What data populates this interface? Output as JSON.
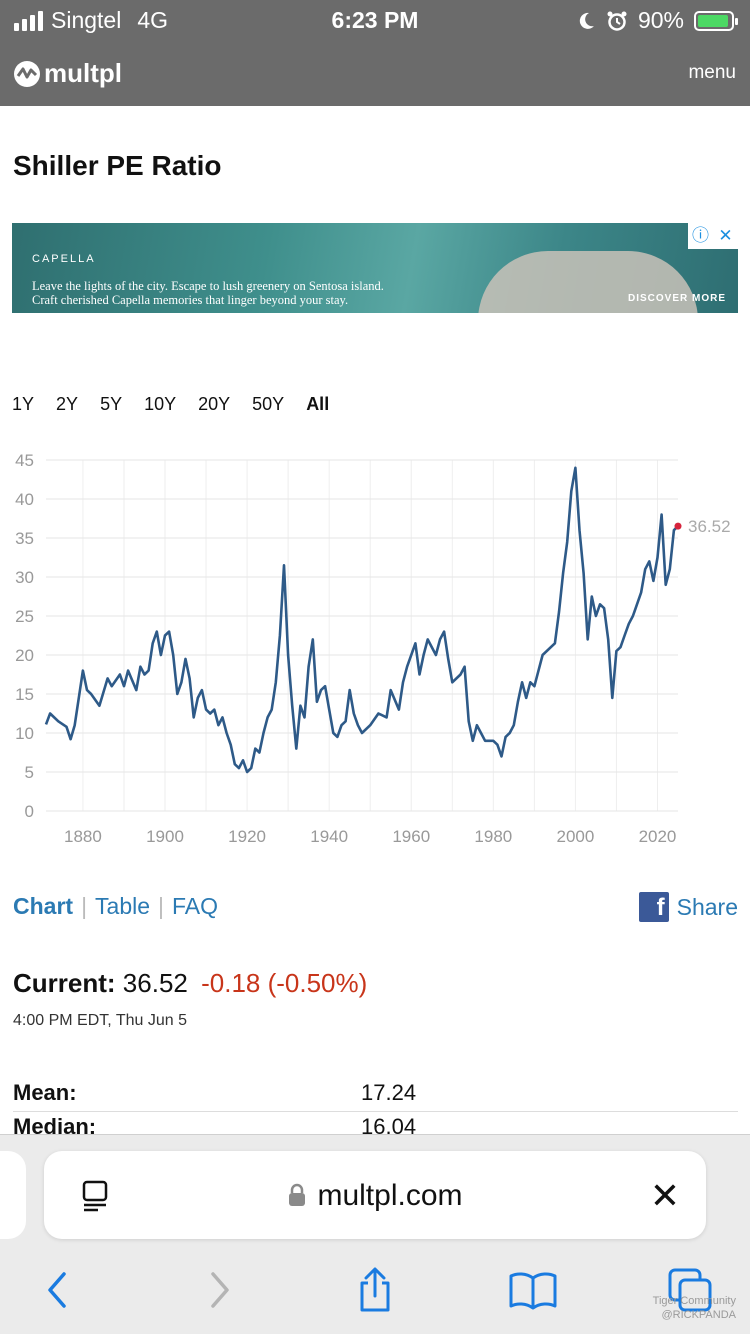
{
  "status_bar": {
    "carrier": "Singtel",
    "network": "4G",
    "time": "6:23 PM",
    "battery_percent": "90%"
  },
  "site": {
    "logo_text": "multpl",
    "menu_label": "menu"
  },
  "page_title": "Shiller PE Ratio",
  "ad": {
    "brand": "CAPELLA",
    "line1": "Leave the lights of the city. Escape to lush greenery on Sentosa island.",
    "line2": "Craft cherished Capella memories that linger beyond your stay.",
    "cta": "DISCOVER MORE",
    "info_icon": "info-icon",
    "close_icon": "close-icon"
  },
  "ranges": [
    "1Y",
    "2Y",
    "5Y",
    "10Y",
    "20Y",
    "50Y",
    "All"
  ],
  "active_range": "All",
  "chart_data": {
    "type": "line",
    "title": "",
    "xlabel": "",
    "ylabel": "",
    "xlim": [
      1871,
      2025
    ],
    "ylim": [
      0,
      45
    ],
    "x_ticks": [
      1880,
      1900,
      1920,
      1940,
      1960,
      1980,
      2000,
      2020
    ],
    "y_ticks": [
      0,
      5,
      10,
      15,
      20,
      25,
      30,
      35,
      40,
      45
    ],
    "grid": true,
    "line_color": "#2e5a88",
    "marker_color": "#d6233c",
    "last_value_label": "36.52",
    "series": [
      {
        "x": [
          1871,
          1872,
          1874,
          1876,
          1877,
          1878,
          1880,
          1881,
          1882,
          1884,
          1886,
          1887,
          1889,
          1890,
          1891,
          1893,
          1894,
          1895,
          1896,
          1897,
          1898,
          1899,
          1900,
          1901,
          1902,
          1903,
          1904,
          1905,
          1906,
          1907,
          1908,
          1909,
          1910,
          1911,
          1912,
          1913,
          1914,
          1915,
          1916,
          1917,
          1918,
          1919,
          1920,
          1921,
          1922,
          1923,
          1924,
          1925,
          1926,
          1927,
          1928,
          1929,
          1930,
          1931,
          1932,
          1933,
          1934,
          1935,
          1936,
          1937,
          1938,
          1939,
          1940,
          1941,
          1942,
          1943,
          1944,
          1945,
          1946,
          1947,
          1948,
          1950,
          1952,
          1954,
          1955,
          1957,
          1958,
          1959,
          1961,
          1962,
          1963,
          1964,
          1966,
          1967,
          1968,
          1969,
          1970,
          1972,
          1973,
          1974,
          1975,
          1976,
          1977,
          1978,
          1980,
          1981,
          1982,
          1983,
          1984,
          1985,
          1986,
          1987,
          1988,
          1989,
          1990,
          1991,
          1992,
          1994,
          1995,
          1996,
          1997,
          1998,
          1999,
          2000,
          2001,
          2002,
          2003,
          2004,
          2005,
          2006,
          2007,
          2008,
          2009,
          2010,
          2011,
          2012,
          2013,
          2014,
          2015,
          2016,
          2017,
          2018,
          2019,
          2020,
          2021,
          2022,
          2023,
          2024,
          2025
        ],
        "values": [
          11.1,
          12.5,
          11.5,
          10.8,
          9.2,
          11.0,
          18.0,
          15.5,
          15.0,
          13.5,
          17.0,
          16.0,
          17.5,
          16.0,
          18.0,
          15.5,
          18.5,
          17.5,
          18.0,
          21.5,
          23.0,
          20.0,
          22.5,
          23.0,
          20.0,
          15.0,
          16.5,
          19.5,
          17.0,
          12.0,
          14.5,
          15.5,
          13.0,
          12.5,
          13.0,
          11.0,
          12.0,
          10.0,
          8.5,
          6.0,
          5.5,
          6.5,
          5.0,
          5.5,
          8.0,
          7.5,
          10.0,
          12.0,
          13.0,
          16.5,
          22.5,
          31.5,
          20.0,
          13.5,
          8.0,
          13.5,
          12.0,
          18.5,
          22.0,
          14.0,
          15.5,
          16.0,
          13.0,
          10.0,
          9.5,
          11.0,
          11.5,
          15.5,
          12.5,
          11.0,
          10.0,
          11.0,
          12.5,
          12.0,
          15.5,
          13.0,
          16.5,
          18.5,
          21.5,
          17.5,
          20.0,
          22.0,
          20.0,
          22.0,
          23.0,
          19.5,
          16.5,
          17.5,
          18.5,
          11.5,
          9.0,
          11.0,
          10.0,
          9.0,
          9.0,
          8.5,
          7.0,
          9.5,
          10.0,
          11.0,
          14.0,
          16.5,
          14.5,
          16.5,
          16.0,
          18.0,
          20.0,
          21.0,
          21.5,
          25.5,
          30.5,
          34.5,
          41.0,
          44.0,
          36.0,
          30.5,
          22.0,
          27.5,
          25.0,
          26.5,
          26.0,
          22.0,
          14.5,
          20.5,
          21.0,
          22.5,
          24.0,
          25.0,
          26.5,
          28.0,
          31.0,
          32.0,
          29.5,
          32.5,
          38.0,
          29.0,
          31.0,
          36.0,
          36.52
        ]
      }
    ]
  },
  "links": {
    "chart": "Chart",
    "table": "Table",
    "faq": "FAQ",
    "share": "Share"
  },
  "current": {
    "label": "Current:",
    "value": "36.52",
    "change": "-0.18 (-0.50%)",
    "timestamp": "4:00 PM EDT, Thu Jun 5"
  },
  "stats": [
    {
      "label": "Mean:",
      "value": "17.24"
    },
    {
      "label": "Median:",
      "value": "16.04"
    }
  ],
  "browser": {
    "domain": "multpl.com"
  },
  "watermark": {
    "line1": "Tiger Community",
    "line2": "@RICKPANDA"
  }
}
